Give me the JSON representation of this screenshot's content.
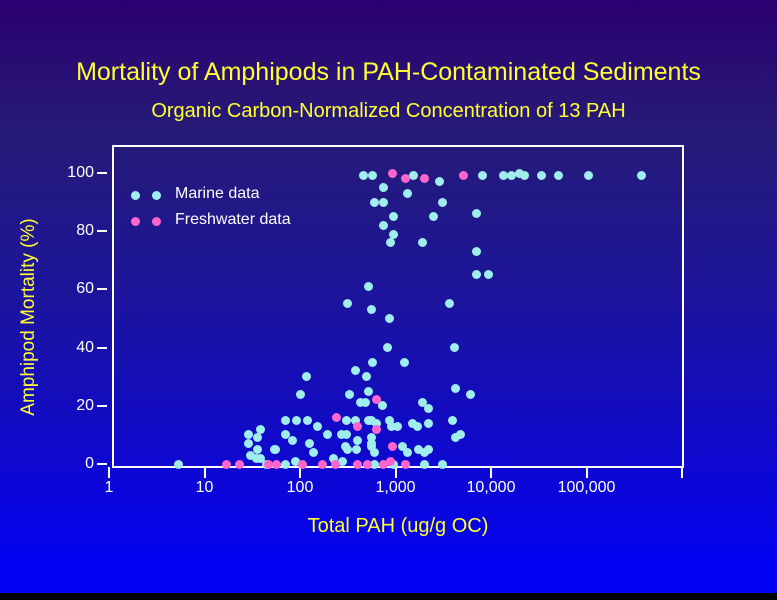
{
  "slide": {
    "title": "Mortality of Amphipods in PAH-Contaminated Sediments",
    "subtitle": "Organic Carbon-Normalized Concentration of 13 PAH",
    "colors": {
      "background_top": "#2A0070",
      "background_bottom": "#0101F6",
      "title_text": "#FFFF33",
      "tick_text": "#FFFFFF",
      "plot_border": "#FFFFFF",
      "marine": "#9FEDED",
      "freshwater": "#FF66CC"
    }
  },
  "chart_data": {
    "type": "scatter",
    "title": "Mortality of Amphipods in PAH-Contaminated Sediments",
    "subtitle": "Organic Carbon-Normalized Concentration of 13 PAH",
    "xlabel": "Total PAH (ug/g OC)",
    "ylabel": "Amphipod Mortality (%)",
    "x_scale": "log",
    "xlim": [
      1,
      1000000
    ],
    "ylim": [
      0,
      100
    ],
    "x_ticks": [
      1,
      10,
      100,
      1000,
      10000,
      100000
    ],
    "x_tick_labels": [
      "1",
      "10",
      "100",
      "1,000",
      "10,000",
      "100,000"
    ],
    "y_ticks": [
      0,
      20,
      40,
      60,
      80,
      100
    ],
    "grid": false,
    "legend_position": "upper-left-inside",
    "legend": [
      {
        "label": "Marine data",
        "color": "#9FEDED"
      },
      {
        "label": "Freshwater data",
        "color": "#FF66CC"
      }
    ],
    "series": [
      {
        "name": "Marine data",
        "color": "#9FEDED",
        "points": [
          [
            457,
            99
          ],
          [
            581,
            99
          ],
          [
            1560,
            99
          ],
          [
            2920,
            97
          ],
          [
            8240,
            99
          ],
          [
            13400,
            99
          ],
          [
            16200,
            99
          ],
          [
            20100,
            100
          ],
          [
            22200,
            99
          ],
          [
            33400,
            99
          ],
          [
            51500,
            99
          ],
          [
            104000,
            99
          ],
          [
            381000,
            99
          ],
          [
            740,
            95
          ],
          [
            610,
            90
          ],
          [
            757,
            90
          ],
          [
            1320,
            93
          ],
          [
            3140,
            90
          ],
          [
            964,
            85
          ],
          [
            2470,
            85
          ],
          [
            6970,
            86
          ],
          [
            740,
            82
          ],
          [
            964,
            79
          ],
          [
            897,
            76
          ],
          [
            1940,
            76
          ],
          [
            6970,
            73
          ],
          [
            6970,
            65
          ],
          [
            9310,
            65
          ],
          [
            527,
            61
          ],
          [
            318,
            55
          ],
          [
            3720,
            55
          ],
          [
            567,
            53
          ],
          [
            875,
            50
          ],
          [
            815,
            40
          ],
          [
            4100,
            40
          ],
          [
            581,
            35
          ],
          [
            1230,
            35
          ],
          [
            377,
            32
          ],
          [
            503,
            30
          ],
          [
            116,
            30
          ],
          [
            4300,
            26
          ],
          [
            6030,
            24
          ],
          [
            326,
            24
          ],
          [
            527,
            25
          ],
          [
            102,
            24
          ],
          [
            425,
            21
          ],
          [
            491,
            21
          ],
          [
            723,
            20
          ],
          [
            1940,
            21
          ],
          [
            2240,
            19
          ],
          [
            310,
            15
          ],
          [
            377,
            15
          ],
          [
            154,
            13
          ],
          [
            71,
            15
          ],
          [
            93,
            15
          ],
          [
            119,
            15
          ],
          [
            527,
            15
          ],
          [
            567,
            15
          ],
          [
            640,
            14
          ],
          [
            875,
            15
          ],
          [
            918,
            13
          ],
          [
            1060,
            13
          ],
          [
            1490,
            14
          ],
          [
            1680,
            13
          ],
          [
            3910,
            15
          ],
          [
            2190,
            14
          ],
          [
            39,
            12
          ],
          [
            29,
            10
          ],
          [
            36,
            9
          ],
          [
            71,
            10
          ],
          [
            84,
            8
          ],
          [
            127,
            7
          ],
          [
            137,
            4
          ],
          [
            29,
            7
          ],
          [
            36,
            5
          ],
          [
            56,
            5
          ],
          [
            30,
            3
          ],
          [
            35,
            2
          ],
          [
            54,
            5
          ],
          [
            196,
            10
          ],
          [
            269,
            10
          ],
          [
            310,
            10
          ],
          [
            404,
            8
          ],
          [
            303,
            6
          ],
          [
            386,
            5
          ],
          [
            567,
            9
          ],
          [
            567,
            7
          ],
          [
            556,
            6
          ],
          [
            610,
            4
          ],
          [
            1170,
            6
          ],
          [
            1320,
            4
          ],
          [
            1760,
            5
          ],
          [
            1990,
            4
          ],
          [
            2240,
            5
          ],
          [
            4300,
            9
          ],
          [
            4850,
            10
          ],
          [
            318,
            5
          ],
          [
            39,
            2
          ],
          [
            5.3,
            0
          ],
          [
            45,
            0
          ],
          [
            70,
            0
          ],
          [
            89,
            1
          ],
          [
            222,
            2
          ],
          [
            282,
            1
          ],
          [
            610,
            0
          ],
          [
            964,
            0
          ],
          [
            2030,
            0
          ],
          [
            3080,
            0
          ]
        ]
      },
      {
        "name": "Freshwater data",
        "color": "#FF66CC",
        "points": [
          [
            941,
            100
          ],
          [
            1260,
            98
          ],
          [
            1990,
            98
          ],
          [
            5210,
            99
          ],
          [
            640,
            22
          ],
          [
            244,
            16
          ],
          [
            404,
            13
          ],
          [
            640,
            12
          ],
          [
            941,
            6
          ],
          [
            17,
            0
          ],
          [
            23.5,
            0
          ],
          [
            47,
            0
          ],
          [
            57,
            0
          ],
          [
            105,
            0
          ],
          [
            170,
            0
          ],
          [
            237,
            0
          ],
          [
            398,
            0
          ],
          [
            515,
            0
          ],
          [
            740,
            0
          ],
          [
            897,
            1
          ],
          [
            1260,
            0
          ]
        ]
      }
    ]
  }
}
